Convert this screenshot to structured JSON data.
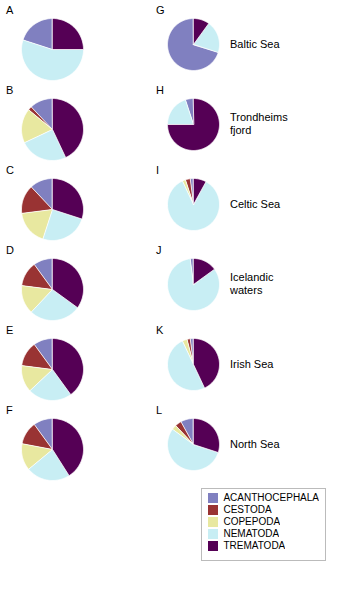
{
  "chart_data": [
    {
      "type": "pie",
      "title": "A",
      "categories": [
        "ACANTHOCEPHALA",
        "CESTODA",
        "COPEPODA",
        "NEMATODA",
        "TREMATODA"
      ],
      "values": [
        20,
        0,
        0,
        55,
        25
      ],
      "colors": [
        "#8080c0",
        "#993333",
        "#e8e8a0",
        "#c8eef4",
        "#550055"
      ]
    },
    {
      "type": "pie",
      "title": "B",
      "categories": [
        "ACANTHOCEPHALA",
        "CESTODA",
        "COPEPODA",
        "NEMATODA",
        "TREMATODA"
      ],
      "values": [
        12,
        2,
        18,
        25,
        43
      ],
      "colors": [
        "#8080c0",
        "#993333",
        "#e8e8a0",
        "#c8eef4",
        "#550055"
      ]
    },
    {
      "type": "pie",
      "title": "C",
      "categories": [
        "ACANTHOCEPHALA",
        "CESTODA",
        "COPEPODA",
        "NEMATODA",
        "TREMATODA"
      ],
      "values": [
        12,
        15,
        18,
        25,
        30
      ],
      "colors": [
        "#8080c0",
        "#993333",
        "#e8e8a0",
        "#c8eef4",
        "#550055"
      ]
    },
    {
      "type": "pie",
      "title": "D",
      "categories": [
        "ACANTHOCEPHALA",
        "CESTODA",
        "COPEPODA",
        "NEMATODA",
        "TREMATODA"
      ],
      "values": [
        10,
        13,
        15,
        27,
        35
      ],
      "colors": [
        "#8080c0",
        "#993333",
        "#e8e8a0",
        "#c8eef4",
        "#550055"
      ]
    },
    {
      "type": "pie",
      "title": "E",
      "categories": [
        "ACANTHOCEPHALA",
        "CESTODA",
        "COPEPODA",
        "NEMATODA",
        "TREMATODA"
      ],
      "values": [
        10,
        13,
        14,
        23,
        40
      ],
      "colors": [
        "#8080c0",
        "#993333",
        "#e8e8a0",
        "#c8eef4",
        "#550055"
      ]
    },
    {
      "type": "pie",
      "title": "F",
      "categories": [
        "ACANTHOCEPHALA",
        "CESTODA",
        "COPEPODA",
        "NEMATODA",
        "TREMATODA"
      ],
      "values": [
        10,
        12,
        14,
        23,
        41
      ],
      "colors": [
        "#8080c0",
        "#993333",
        "#e8e8a0",
        "#c8eef4",
        "#550055"
      ]
    },
    {
      "type": "pie",
      "title": "G",
      "categories": [
        "ACANTHOCEPHALA",
        "CESTODA",
        "COPEPODA",
        "NEMATODA",
        "TREMATODA"
      ],
      "values": [
        70,
        0,
        0,
        20,
        10
      ],
      "colors": [
        "#8080c0",
        "#993333",
        "#e8e8a0",
        "#c8eef4",
        "#550055"
      ],
      "annotations": [
        "Baltic Sea"
      ]
    },
    {
      "type": "pie",
      "title": "H",
      "categories": [
        "ACANTHOCEPHALA",
        "CESTODA",
        "COPEPODA",
        "NEMATODA",
        "TREMATODA"
      ],
      "values": [
        5,
        0,
        0,
        20,
        75
      ],
      "colors": [
        "#8080c0",
        "#993333",
        "#e8e8a0",
        "#c8eef4",
        "#550055"
      ],
      "annotations": [
        "Trondheims\nfjord"
      ]
    },
    {
      "type": "pie",
      "title": "I",
      "categories": [
        "ACANTHOCEPHALA",
        "CESTODA",
        "COPEPODA",
        "NEMATODA",
        "TREMATODA"
      ],
      "values": [
        2,
        3,
        2,
        85,
        8
      ],
      "colors": [
        "#8080c0",
        "#993333",
        "#e8e8a0",
        "#c8eef4",
        "#550055"
      ],
      "annotations": [
        "Celtic Sea"
      ]
    },
    {
      "type": "pie",
      "title": "J",
      "categories": [
        "ACANTHOCEPHALA",
        "CESTODA",
        "COPEPODA",
        "NEMATODA",
        "TREMATODA"
      ],
      "values": [
        2,
        0,
        0,
        83,
        15
      ],
      "colors": [
        "#8080c0",
        "#993333",
        "#e8e8a0",
        "#c8eef4",
        "#550055"
      ],
      "annotations": [
        "Icelandic\nwaters"
      ]
    },
    {
      "type": "pie",
      "title": "K",
      "categories": [
        "ACANTHOCEPHALA",
        "CESTODA",
        "COPEPODA",
        "NEMATODA",
        "TREMATODA"
      ],
      "values": [
        2,
        2,
        3,
        50,
        43
      ],
      "colors": [
        "#8080c0",
        "#993333",
        "#e8e8a0",
        "#c8eef4",
        "#550055"
      ],
      "annotations": [
        "Irish Sea"
      ]
    },
    {
      "type": "pie",
      "title": "L",
      "categories": [
        "ACANTHOCEPHALA",
        "CESTODA",
        "COPEPODA",
        "NEMATODA",
        "TREMATODA"
      ],
      "values": [
        8,
        4,
        3,
        55,
        30
      ],
      "colors": [
        "#8080c0",
        "#993333",
        "#e8e8a0",
        "#c8eef4",
        "#550055"
      ],
      "annotations": [
        "North Sea"
      ],
      "legend": "lower right"
    }
  ]
}
